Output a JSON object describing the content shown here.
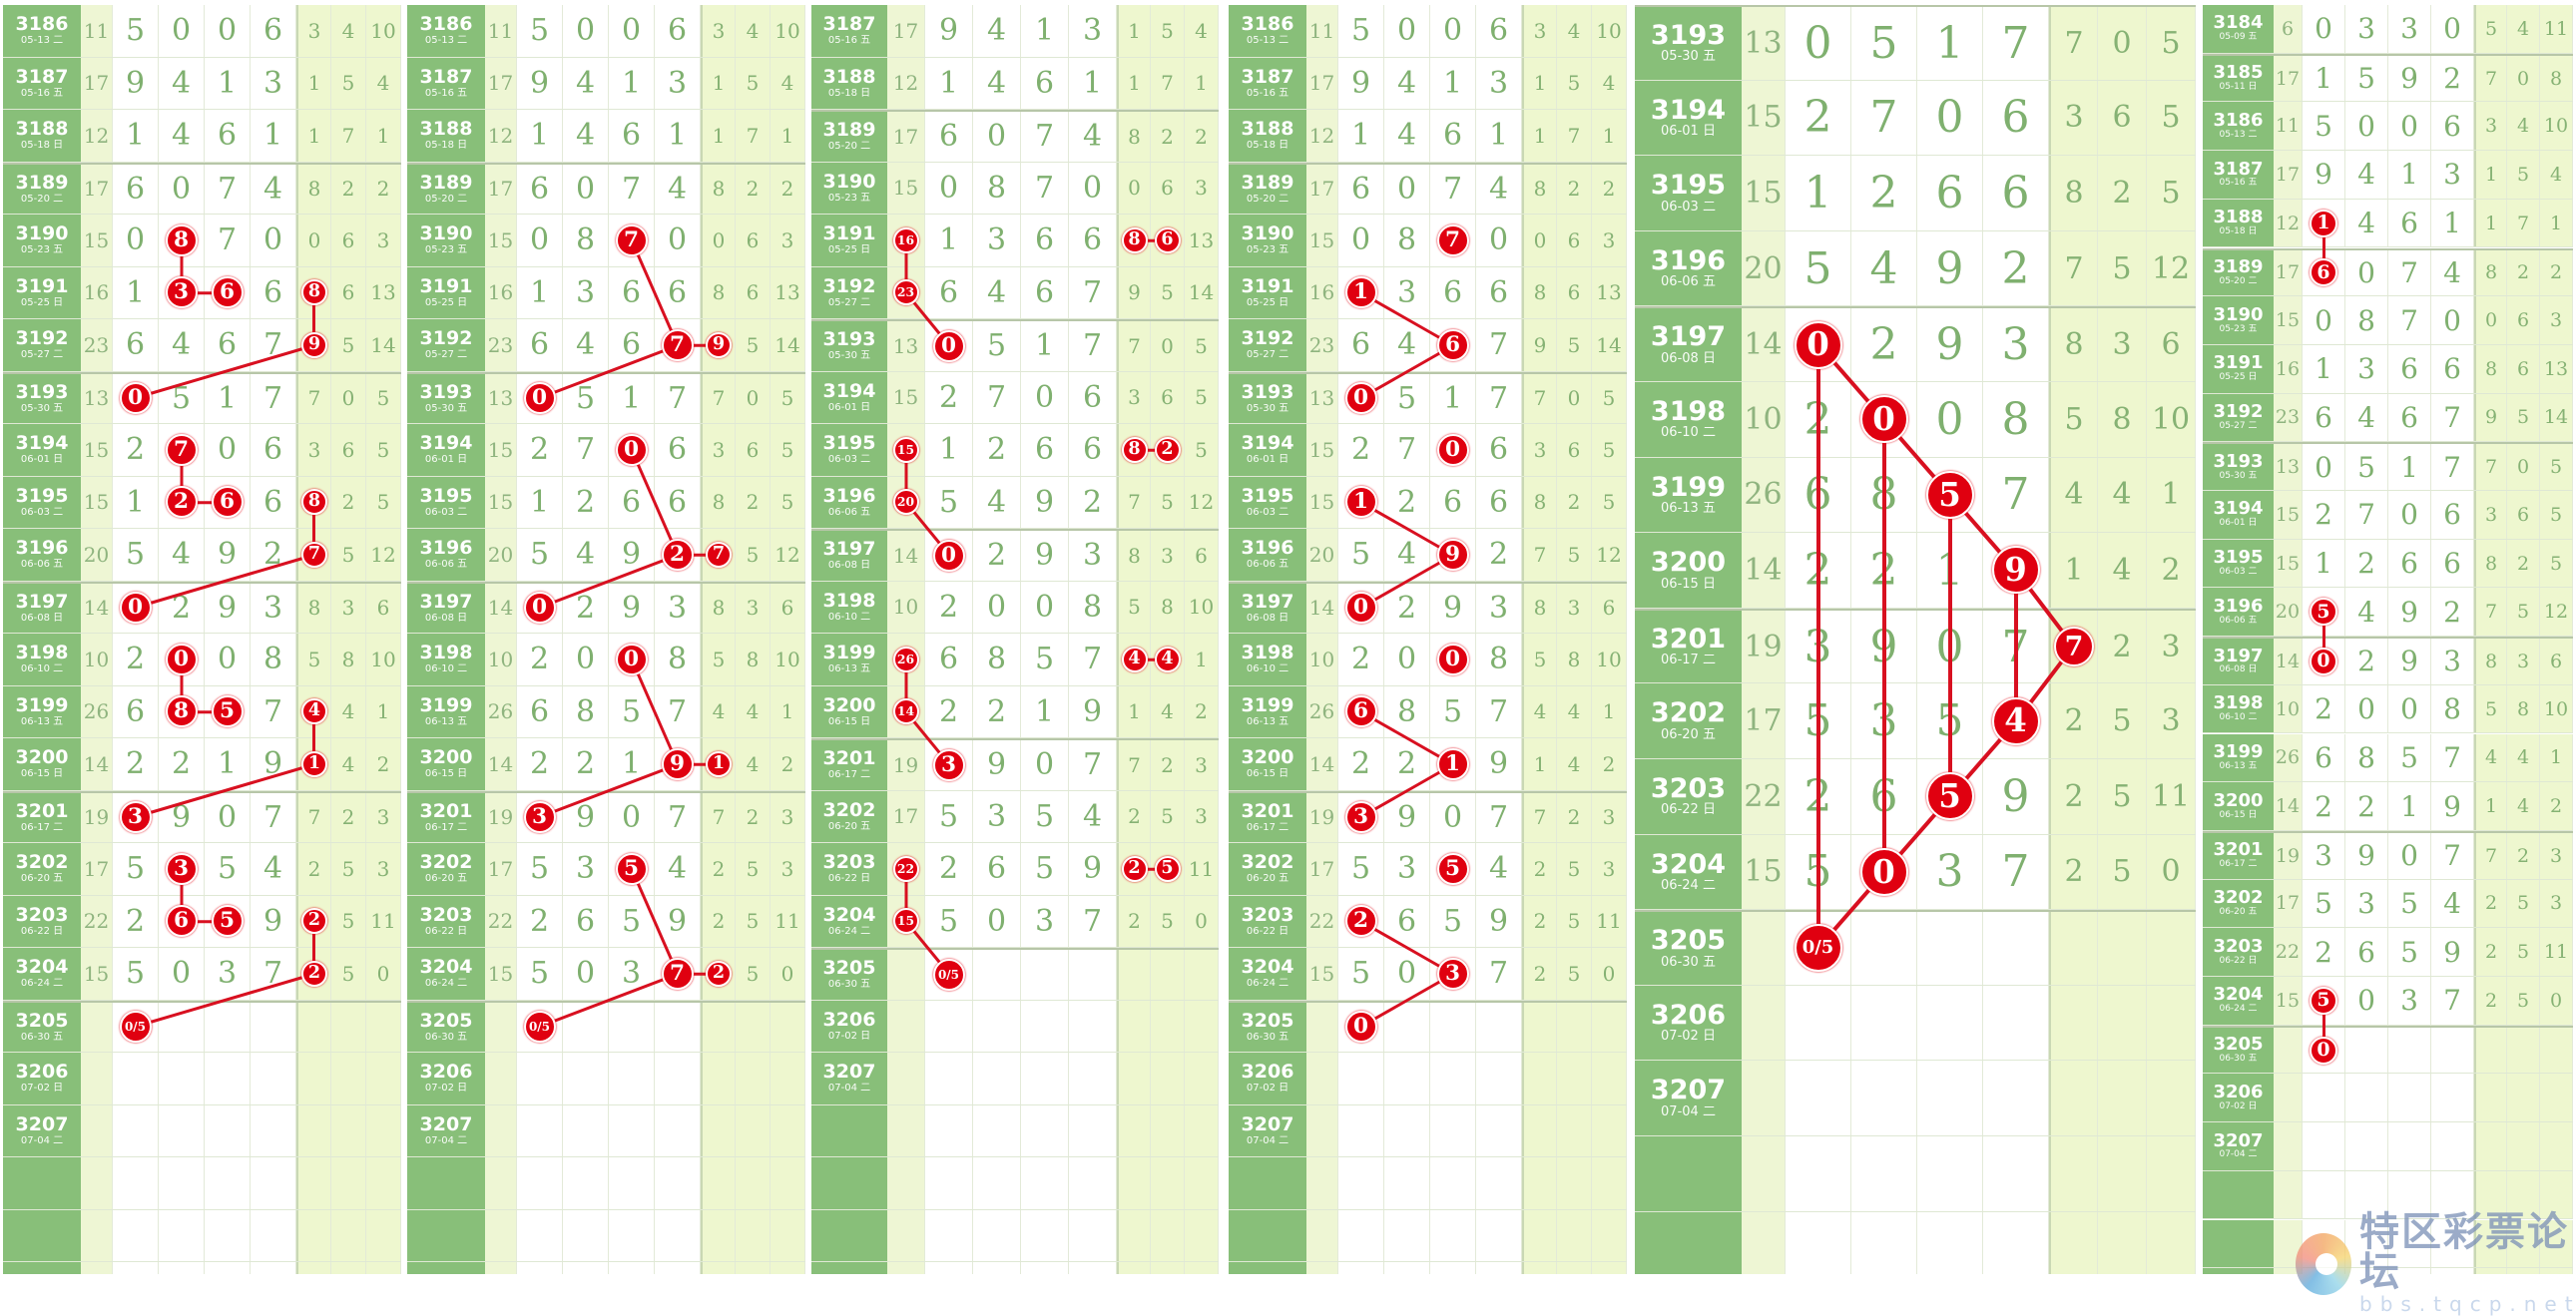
{
  "colors": {
    "label_bg": "#88bf79",
    "digit_text": "#7fb06f",
    "marker": "#e00010",
    "line": "#d81020",
    "stat_bg": "#eef7cf"
  },
  "draws": [
    {
      "period": "3184",
      "date": "05-09 五",
      "sum": "6",
      "digits": [
        "0",
        "3",
        "3",
        "0"
      ],
      "stats": [
        "5",
        "4",
        "11"
      ]
    },
    {
      "period": "3185",
      "date": "05-11 日",
      "sum": "17",
      "digits": [
        "1",
        "5",
        "9",
        "2"
      ],
      "stats": [
        "7",
        "0",
        "8"
      ]
    },
    {
      "period": "3186",
      "date": "05-13 二",
      "sum": "11",
      "digits": [
        "5",
        "0",
        "0",
        "6"
      ],
      "stats": [
        "3",
        "4",
        "10"
      ]
    },
    {
      "period": "3187",
      "date": "05-16 五",
      "sum": "17",
      "digits": [
        "9",
        "4",
        "1",
        "3"
      ],
      "stats": [
        "1",
        "5",
        "4"
      ]
    },
    {
      "period": "3188",
      "date": "05-18 日",
      "sum": "12",
      "digits": [
        "1",
        "4",
        "6",
        "1"
      ],
      "stats": [
        "1",
        "7",
        "1"
      ]
    },
    {
      "period": "3189",
      "date": "05-20 二",
      "sum": "17",
      "digits": [
        "6",
        "0",
        "7",
        "4"
      ],
      "stats": [
        "8",
        "2",
        "2"
      ]
    },
    {
      "period": "3190",
      "date": "05-23 五",
      "sum": "15",
      "digits": [
        "0",
        "8",
        "7",
        "0"
      ],
      "stats": [
        "0",
        "6",
        "3"
      ]
    },
    {
      "period": "3191",
      "date": "05-25 日",
      "sum": "16",
      "digits": [
        "1",
        "3",
        "6",
        "6"
      ],
      "stats": [
        "8",
        "6",
        "13"
      ]
    },
    {
      "period": "3192",
      "date": "05-27 二",
      "sum": "23",
      "digits": [
        "6",
        "4",
        "6",
        "7"
      ],
      "stats": [
        "9",
        "5",
        "14"
      ]
    },
    {
      "period": "3193",
      "date": "05-30 五",
      "sum": "13",
      "digits": [
        "0",
        "5",
        "1",
        "7"
      ],
      "stats": [
        "7",
        "0",
        "5"
      ]
    },
    {
      "period": "3194",
      "date": "06-01 日",
      "sum": "15",
      "digits": [
        "2",
        "7",
        "0",
        "6"
      ],
      "stats": [
        "3",
        "6",
        "5"
      ]
    },
    {
      "period": "3195",
      "date": "06-03 二",
      "sum": "15",
      "digits": [
        "1",
        "2",
        "6",
        "6"
      ],
      "stats": [
        "8",
        "2",
        "5"
      ]
    },
    {
      "period": "3196",
      "date": "06-06 五",
      "sum": "20",
      "digits": [
        "5",
        "4",
        "9",
        "2"
      ],
      "stats": [
        "7",
        "5",
        "12"
      ]
    },
    {
      "period": "3197",
      "date": "06-08 日",
      "sum": "14",
      "digits": [
        "0",
        "2",
        "9",
        "3"
      ],
      "stats": [
        "8",
        "3",
        "6"
      ]
    },
    {
      "period": "3198",
      "date": "06-10 二",
      "sum": "10",
      "digits": [
        "2",
        "0",
        "0",
        "8"
      ],
      "stats": [
        "5",
        "8",
        "10"
      ]
    },
    {
      "period": "3199",
      "date": "06-13 五",
      "sum": "26",
      "digits": [
        "6",
        "8",
        "5",
        "7"
      ],
      "stats": [
        "4",
        "4",
        "1"
      ]
    },
    {
      "period": "3200",
      "date": "06-15 日",
      "sum": "14",
      "digits": [
        "2",
        "2",
        "1",
        "9"
      ],
      "stats": [
        "1",
        "4",
        "2"
      ]
    },
    {
      "period": "3201",
      "date": "06-17 二",
      "sum": "19",
      "digits": [
        "3",
        "9",
        "0",
        "7"
      ],
      "stats": [
        "7",
        "2",
        "3"
      ]
    },
    {
      "period": "3202",
      "date": "06-20 五",
      "sum": "17",
      "digits": [
        "5",
        "3",
        "5",
        "4"
      ],
      "stats": [
        "2",
        "5",
        "3"
      ]
    },
    {
      "period": "3203",
      "date": "06-22 日",
      "sum": "22",
      "digits": [
        "2",
        "6",
        "5",
        "9"
      ],
      "stats": [
        "2",
        "5",
        "11"
      ]
    },
    {
      "period": "3204",
      "date": "06-24 二",
      "sum": "15",
      "digits": [
        "5",
        "0",
        "3",
        "7"
      ],
      "stats": [
        "2",
        "5",
        "0"
      ]
    },
    {
      "period": "3205",
      "date": "06-30 五",
      "sum": "",
      "digits": [
        "",
        "",
        "",
        ""
      ],
      "stats": [
        "",
        "",
        ""
      ]
    },
    {
      "period": "3206",
      "date": "07-02 日",
      "sum": "",
      "digits": [
        "",
        "",
        "",
        ""
      ],
      "stats": [
        "",
        "",
        ""
      ]
    },
    {
      "period": "3207",
      "date": "07-04 二",
      "sum": "",
      "digits": [
        "",
        "",
        "",
        ""
      ],
      "stats": [
        "",
        "",
        ""
      ]
    }
  ],
  "panels": [
    {
      "first": "3186",
      "markers": [
        [
          "3190",
          "d2",
          "8"
        ],
        [
          "3191",
          "d2",
          "3"
        ],
        [
          "3191",
          "d3",
          "6"
        ],
        [
          "3191",
          "s1",
          "8"
        ],
        [
          "3192",
          "s1",
          "9"
        ],
        [
          "3193",
          "d1",
          "0"
        ],
        [
          "3194",
          "d2",
          "7"
        ],
        [
          "3195",
          "d2",
          "2"
        ],
        [
          "3195",
          "d3",
          "6"
        ],
        [
          "3195",
          "s1",
          "8"
        ],
        [
          "3196",
          "s1",
          "7"
        ],
        [
          "3197",
          "d1",
          "0"
        ],
        [
          "3198",
          "d2",
          "0"
        ],
        [
          "3199",
          "d2",
          "8"
        ],
        [
          "3199",
          "d3",
          "5"
        ],
        [
          "3199",
          "s1",
          "4"
        ],
        [
          "3200",
          "s1",
          "1"
        ],
        [
          "3201",
          "d1",
          "3"
        ],
        [
          "3202",
          "d2",
          "3"
        ],
        [
          "3203",
          "d2",
          "6"
        ],
        [
          "3203",
          "d3",
          "5"
        ],
        [
          "3203",
          "s1",
          "2"
        ],
        [
          "3204",
          "s1",
          "2"
        ],
        [
          "3205",
          "d1",
          "0/5"
        ]
      ],
      "chains": [
        [
          0,
          1,
          2
        ],
        [
          3,
          4,
          5
        ],
        [
          6,
          7,
          8
        ],
        [
          9,
          10,
          11
        ],
        [
          12,
          13,
          14
        ],
        [
          15,
          16,
          17
        ],
        [
          18,
          19,
          20
        ],
        [
          21,
          22,
          23
        ]
      ]
    },
    {
      "first": "3186",
      "markers": [
        [
          "3190",
          "d3",
          "7"
        ],
        [
          "3192",
          "d4",
          "7"
        ],
        [
          "3192",
          "s1",
          "9"
        ],
        [
          "3193",
          "d1",
          "0"
        ],
        [
          "3194",
          "d3",
          "0"
        ],
        [
          "3196",
          "d4",
          "2"
        ],
        [
          "3196",
          "s1",
          "7"
        ],
        [
          "3197",
          "d1",
          "0"
        ],
        [
          "3198",
          "d3",
          "0"
        ],
        [
          "3200",
          "d4",
          "9"
        ],
        [
          "3200",
          "s1",
          "1"
        ],
        [
          "3201",
          "d1",
          "3"
        ],
        [
          "3202",
          "d3",
          "5"
        ],
        [
          "3204",
          "d4",
          "7"
        ],
        [
          "3204",
          "s1",
          "2"
        ],
        [
          "3205",
          "d1",
          "0/5"
        ]
      ],
      "chains": [
        [
          0,
          1,
          2
        ],
        [
          3,
          1
        ],
        [
          4,
          5,
          6
        ],
        [
          7,
          5
        ],
        [
          8,
          9,
          10
        ],
        [
          11,
          9
        ],
        [
          12,
          13,
          14
        ],
        [
          15,
          13
        ]
      ]
    },
    {
      "first": "3187",
      "markers": [
        [
          "3191",
          "sum",
          "16"
        ],
        [
          "3192",
          "sum",
          "23"
        ],
        [
          "3193",
          "d1",
          "0"
        ],
        [
          "3191",
          "s1",
          "8"
        ],
        [
          "3191",
          "s2",
          "6"
        ],
        [
          "3195",
          "sum",
          "15"
        ],
        [
          "3196",
          "sum",
          "20"
        ],
        [
          "3197",
          "d1",
          "0"
        ],
        [
          "3195",
          "s1",
          "8"
        ],
        [
          "3195",
          "s2",
          "2"
        ],
        [
          "3199",
          "sum",
          "26"
        ],
        [
          "3200",
          "sum",
          "14"
        ],
        [
          "3201",
          "d1",
          "3"
        ],
        [
          "3199",
          "s1",
          "4"
        ],
        [
          "3199",
          "s2",
          "4"
        ],
        [
          "3203",
          "sum",
          "22"
        ],
        [
          "3204",
          "sum",
          "15"
        ],
        [
          "3205",
          "d1",
          "0/5"
        ],
        [
          "3203",
          "s1",
          "2"
        ],
        [
          "3203",
          "s2",
          "5"
        ]
      ],
      "chains": [
        [
          0,
          1,
          2
        ],
        [
          3,
          4
        ],
        [
          5,
          6,
          7
        ],
        [
          8,
          9
        ],
        [
          10,
          11,
          12
        ],
        [
          13,
          14
        ],
        [
          15,
          16,
          17
        ],
        [
          18,
          19
        ]
      ]
    },
    {
      "first": "3186",
      "markers": [
        [
          "3190",
          "d3",
          "7"
        ],
        [
          "3191",
          "d1",
          "1"
        ],
        [
          "3192",
          "d3",
          "6"
        ],
        [
          "3193",
          "d1",
          "0"
        ],
        [
          "3194",
          "d3",
          "0"
        ],
        [
          "3195",
          "d1",
          "1"
        ],
        [
          "3196",
          "d3",
          "9"
        ],
        [
          "3197",
          "d1",
          "0"
        ],
        [
          "3198",
          "d3",
          "0"
        ],
        [
          "3199",
          "d1",
          "6"
        ],
        [
          "3200",
          "d3",
          "1"
        ],
        [
          "3201",
          "d1",
          "3"
        ],
        [
          "3202",
          "d3",
          "5"
        ],
        [
          "3203",
          "d1",
          "2"
        ],
        [
          "3204",
          "d3",
          "3"
        ],
        [
          "3205",
          "d1",
          "0"
        ]
      ],
      "chains": [
        [
          1,
          2,
          3
        ],
        [
          5,
          6,
          7
        ],
        [
          9,
          10,
          11
        ],
        [
          13,
          14,
          15
        ]
      ]
    },
    {
      "first": "3193",
      "markers": [
        [
          "3197",
          "d1",
          "0"
        ],
        [
          "3198",
          "d2",
          "0"
        ],
        [
          "3199",
          "d3",
          "5"
        ],
        [
          "3200",
          "d4",
          "9"
        ],
        [
          "3201",
          "s1",
          "7"
        ],
        [
          "3202",
          "d4",
          "4"
        ],
        [
          "3203",
          "d3",
          "5"
        ],
        [
          "3204",
          "d2",
          "0"
        ],
        [
          "3205",
          "d1",
          "0/5"
        ]
      ],
      "chains": [
        [
          0,
          1,
          2,
          3,
          4,
          5,
          6,
          7,
          8
        ],
        [
          0,
          8
        ],
        [
          1,
          7
        ],
        [
          2,
          6
        ],
        [
          3,
          5
        ]
      ]
    },
    {
      "first": "3184",
      "markers": [
        [
          "3188",
          "d1",
          "1"
        ],
        [
          "3189",
          "d1",
          "6"
        ],
        [
          "3196",
          "d1",
          "5"
        ],
        [
          "3197",
          "d1",
          "0"
        ],
        [
          "3204",
          "d1",
          "5"
        ],
        [
          "3205",
          "d1",
          "0"
        ]
      ],
      "chains": [
        [
          0,
          1
        ],
        [
          2,
          3
        ],
        [
          4,
          5
        ]
      ]
    }
  ],
  "watermark": {
    "name": "特区彩票论坛",
    "url": "bbs.tqcp.net"
  }
}
